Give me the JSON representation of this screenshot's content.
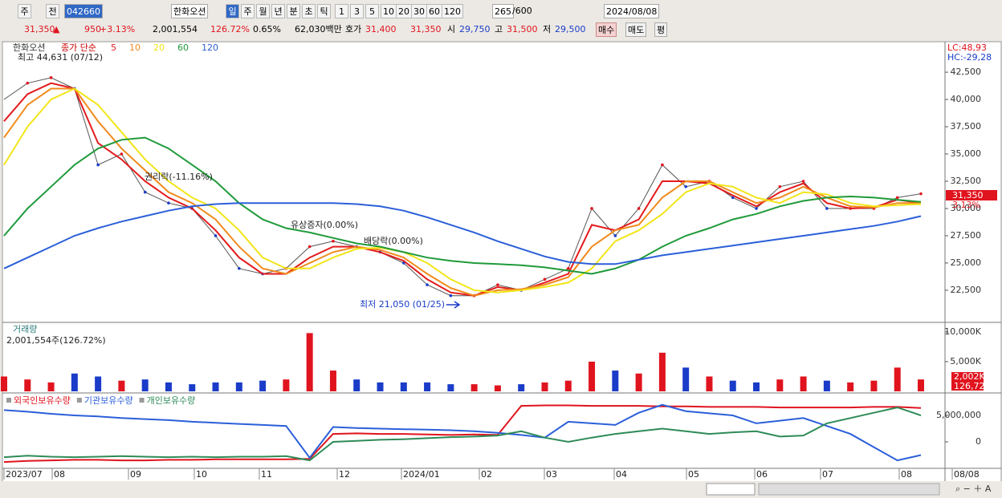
{
  "toolbar": {
    "row1": [
      "주",
      "전",
      "042660",
      "한화오션",
      "일",
      "주",
      "월",
      "년",
      "분",
      "초",
      "틱",
      "1",
      "3",
      "5",
      "10",
      "20",
      "30",
      "60",
      "120",
      "265",
      "/600",
      "2024/08/08"
    ],
    "row2": [
      "31,350",
      "▲",
      "950",
      "+3.13%",
      "2,001,554",
      "126.72%",
      "0.65%",
      "62,030백만",
      "호가",
      "31,400",
      "31,350",
      "시",
      "29,750",
      "고",
      "31,500",
      "저",
      "29,500",
      "매수",
      "매도",
      "평"
    ]
  },
  "x_labels": [
    "2023/07",
    "08",
    "09",
    "10",
    "11",
    "12",
    "2024/01",
    "02",
    "03",
    "04",
    "05",
    "06",
    "07",
    "08",
    "08/08"
  ],
  "chart_data": [
    {
      "type": "line",
      "title": "한화오션",
      "series_label": "종가 단순",
      "values": [
        40000,
        41500,
        42000,
        41000,
        34000,
        35000,
        31500,
        30500,
        30000,
        27500,
        24500,
        24000,
        24500,
        26500,
        27000,
        26500,
        26000,
        25000,
        23000,
        22000,
        22000,
        23000,
        22500,
        23500,
        24500,
        30000,
        27500,
        30000,
        34000,
        32000,
        32500,
        31000,
        30000,
        32000,
        32500,
        30000,
        30000,
        30000,
        31000,
        31350
      ],
      "series": [
        {
          "name": "5",
          "color": "#e31a1c",
          "values": [
            38000,
            40500,
            41500,
            41000,
            36000,
            34500,
            32500,
            31000,
            30000,
            28000,
            25500,
            24000,
            24000,
            25500,
            26500,
            26500,
            26000,
            25200,
            23500,
            22300,
            22000,
            22800,
            22500,
            23200,
            24000,
            28500,
            28000,
            29000,
            32500,
            32500,
            32300,
            31200,
            30200,
            31500,
            32300,
            30500,
            30000,
            30100,
            30800,
            30500
          ]
        },
        {
          "name": "10",
          "color": "#f08a1c",
          "values": [
            36500,
            39500,
            41000,
            41000,
            38000,
            35500,
            33500,
            31500,
            30500,
            29000,
            26500,
            24500,
            24000,
            25000,
            26000,
            26500,
            26200,
            25500,
            24000,
            22700,
            22000,
            22500,
            22600,
            23000,
            23700,
            26500,
            28000,
            28500,
            31000,
            32500,
            32500,
            31500,
            30500,
            31000,
            32000,
            31000,
            30200,
            30100,
            30500,
            30500
          ]
        },
        {
          "name": "20",
          "color": "#f2e51a",
          "values": [
            34000,
            37500,
            40000,
            41000,
            39500,
            37000,
            34500,
            32500,
            31000,
            30000,
            28000,
            25500,
            24500,
            24500,
            25500,
            26300,
            26400,
            26000,
            25000,
            23500,
            22500,
            22300,
            22500,
            22800,
            23200,
            24500,
            27000,
            28000,
            29500,
            31500,
            32300,
            32000,
            31000,
            30500,
            31500,
            31300,
            30500,
            30200,
            30300,
            30400
          ]
        },
        {
          "name": "60",
          "color": "#1f9a3a",
          "values": [
            27500,
            30000,
            32000,
            34000,
            35500,
            36300,
            36500,
            35500,
            34000,
            32500,
            30500,
            29000,
            28200,
            27800,
            27300,
            26800,
            26500,
            26000,
            25500,
            25200,
            25000,
            24900,
            24800,
            24600,
            24300,
            24000,
            24500,
            25300,
            26500,
            27500,
            28200,
            29000,
            29500,
            30200,
            30700,
            31000,
            31100,
            31000,
            30800,
            30600
          ]
        },
        {
          "name": "120",
          "color": "#2b5fd9",
          "values": [
            24500,
            25500,
            26500,
            27500,
            28200,
            28800,
            29300,
            29800,
            30200,
            30400,
            30500,
            30500,
            30500,
            30500,
            30500,
            30400,
            30200,
            29800,
            29200,
            28500,
            27800,
            27000,
            26300,
            25600,
            25100,
            24900,
            24900,
            25300,
            25700,
            26000,
            26300,
            26600,
            26900,
            27200,
            27500,
            27800,
            28100,
            28400,
            28800,
            29300
          ]
        }
      ],
      "ylim": [
        19700,
        45300
      ],
      "yticks": [
        {
          "value": 22500,
          "label": "22,500"
        },
        {
          "value": 25000,
          "label": "25,000"
        },
        {
          "value": 27500,
          "label": "27,500"
        },
        {
          "value": 30000,
          "label": "30,000"
        },
        {
          "value": 32500,
          "label": "32,500"
        },
        {
          "value": 35000,
          "label": "35,000"
        },
        {
          "value": 37500,
          "label": "37,500"
        },
        {
          "value": 40000,
          "label": "40,000"
        },
        {
          "value": 42500,
          "label": "42,500"
        }
      ],
      "annotations": [
        "최고 44,631 (07/12)",
        "권리락(-11.16%)",
        "유상증자(0.00%)",
        "배당락(0.00%)",
        "최저 21,050 (01/25)"
      ],
      "right_labels": [
        "LC:48,93",
        "HC:-29,28"
      ],
      "last_price_label": "31,350",
      "last_change_label": "3.13%",
      "up_color": "#e0141e",
      "down_color": "#1a3cc8"
    },
    {
      "type": "bar",
      "title": "거래량",
      "subtitle": "2,001,554주(126.72%)",
      "values": [
        2500,
        2000,
        1500,
        3000,
        2500,
        1800,
        2000,
        1500,
        1200,
        1500,
        1500,
        1800,
        2000,
        9800,
        3500,
        2000,
        1500,
        1500,
        1500,
        1200,
        1200,
        1000,
        1200,
        1500,
        1800,
        5000,
        3500,
        3000,
        6500,
        4000,
        2500,
        1800,
        1500,
        2000,
        2500,
        1800,
        1500,
        1800,
        4000,
        2002
      ],
      "ylim": [
        0,
        11200
      ],
      "yticks": [
        {
          "value": 5000,
          "label": "5,000K"
        },
        {
          "value": 10000,
          "label": "10,000K"
        }
      ],
      "last_labels": [
        "2,002K",
        "126,72%"
      ]
    },
    {
      "type": "line",
      "series": [
        {
          "name": "외국인보유수량",
          "color": "#e0141e",
          "values": [
            -3800000,
            -3600000,
            -3500000,
            -3400000,
            -3400000,
            -3500000,
            -3500000,
            -3400000,
            -3400000,
            -3300000,
            -3300000,
            -3300000,
            -3300000,
            -3200000,
            1500000,
            1600000,
            1500000,
            1500000,
            1400000,
            1300000,
            1400000,
            1300000,
            6800000,
            6900000,
            6900000,
            6800000,
            6800000,
            6800000,
            6700000,
            6700000,
            6600000,
            6600000,
            6600000,
            6500000,
            6500000,
            6500000,
            6500000,
            6600000,
            6600000,
            6400000
          ]
        },
        {
          "name": "기관보유수량",
          "color": "#2b5fd9",
          "values": [
            6000000,
            5700000,
            5300000,
            5000000,
            4800000,
            4500000,
            4300000,
            4100000,
            3800000,
            3600000,
            3400000,
            3200000,
            3000000,
            -3000000,
            2800000,
            2600000,
            2500000,
            2400000,
            2300000,
            2200000,
            2000000,
            1700000,
            1300000,
            800000,
            3800000,
            3500000,
            3200000,
            5500000,
            7000000,
            5800000,
            5400000,
            5000000,
            3500000,
            4000000,
            4500000,
            3000000,
            1500000,
            -1000000,
            -3500000,
            -2500000
          ]
        },
        {
          "name": "개인보유수량",
          "color": "#2e8b57",
          "values": [
            -2900000,
            -2600000,
            -2800000,
            -2900000,
            -2800000,
            -2700000,
            -2800000,
            -2900000,
            -2800000,
            -2900000,
            -2800000,
            -2800000,
            -2700000,
            -3500000,
            0,
            200000,
            400000,
            500000,
            700000,
            900000,
            1000000,
            1200000,
            2000000,
            800000,
            0,
            800000,
            1500000,
            2000000,
            2500000,
            2000000,
            1500000,
            1800000,
            2000000,
            1000000,
            1200000,
            3500000,
            4500000,
            5500000,
            6500000,
            5000000
          ]
        }
      ],
      "ylim": [
        -4850000,
        8940000
      ],
      "yticks": [
        0,
        {
          "value": 5000000,
          "label": "5,000,000"
        }
      ]
    }
  ]
}
